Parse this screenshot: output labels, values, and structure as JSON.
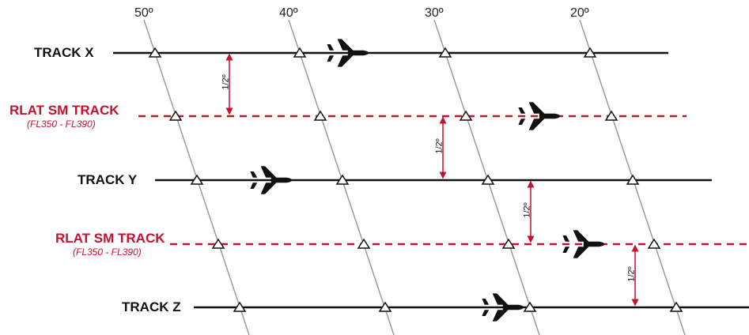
{
  "longitudes": [
    "50º",
    "40º",
    "30º",
    "20º"
  ],
  "tracks": [
    {
      "label": "TRACK X",
      "type": "track"
    },
    {
      "label": "RLAT SM TRACK",
      "sub": "(FL350 - FL390)",
      "type": "rlat"
    },
    {
      "label": "TRACK Y",
      "type": "track"
    },
    {
      "label": "RLAT SM TRACK",
      "sub": "(FL350 - FL390)",
      "type": "rlat"
    },
    {
      "label": "TRACK Z",
      "type": "track"
    }
  ],
  "separation_label": "1/2º",
  "colors": {
    "track": "#111111",
    "rlat": "#c8102e",
    "meridian": "#9a9a9a"
  },
  "icons": {
    "aircraft": "airplane-icon",
    "waypoint": "triangle-waypoint-icon"
  }
}
